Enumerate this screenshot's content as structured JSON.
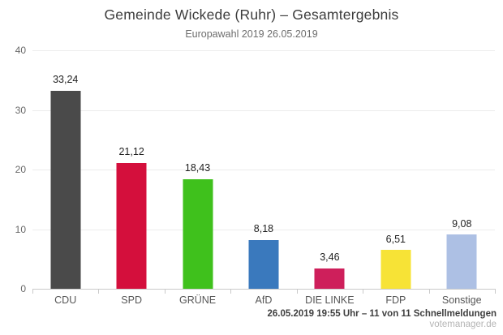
{
  "header": {
    "title": "Gemeinde Wickede (Ruhr) – Gesamtergebnis",
    "subtitle": "Europawahl 2019 26.05.2019"
  },
  "chart_data": {
    "type": "bar",
    "title": "Gemeinde Wickede (Ruhr) – Gesamtergebnis",
    "subtitle": "Europawahl 2019 26.05.2019",
    "categories": [
      "CDU",
      "SPD",
      "GRÜNE",
      "AfD",
      "DIE LINKE",
      "FDP",
      "Sonstige"
    ],
    "values": [
      33.24,
      21.12,
      18.43,
      8.18,
      3.46,
      6.51,
      9.08
    ],
    "value_labels": [
      "33,24",
      "21,12",
      "18,43",
      "8,18",
      "3,46",
      "6,51",
      "9,08"
    ],
    "bar_colors": [
      "#4a4a4a",
      "#d40f3c",
      "#3fc11c",
      "#3a79bd",
      "#ce1f5b",
      "#f7e336",
      "#adc0e4"
    ],
    "xlabel": "",
    "ylabel": "",
    "ylim": [
      0,
      40
    ],
    "yticks": [
      0,
      10,
      20,
      30,
      40
    ],
    "ytick_labels": [
      "0",
      "10",
      "20",
      "30",
      "40"
    ],
    "grid": true,
    "legend": false
  },
  "footer": {
    "status": "26.05.2019 19:55 Uhr – 11 von 11 Schnellmeldungen",
    "source": "votemanager.de"
  }
}
